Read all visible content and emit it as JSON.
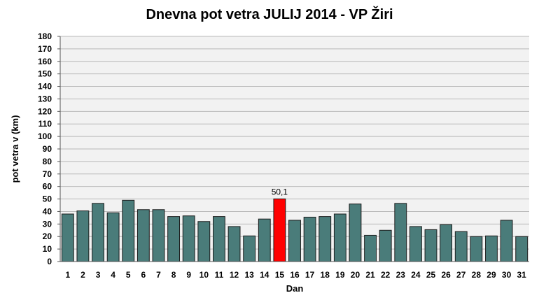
{
  "chart_data": {
    "type": "bar",
    "title": "Dnevna pot vetra JULIJ 2014 - VP Žiri",
    "xlabel": "Dan",
    "ylabel": "pot vetra  v (km)",
    "ylim": [
      0,
      180
    ],
    "ytick_step": 10,
    "grid": true,
    "categories": [
      "1",
      "2",
      "3",
      "4",
      "5",
      "6",
      "7",
      "8",
      "9",
      "10",
      "11",
      "12",
      "13",
      "14",
      "15",
      "16",
      "17",
      "18",
      "19",
      "20",
      "21",
      "22",
      "23",
      "24",
      "25",
      "26",
      "27",
      "28",
      "29",
      "30",
      "31"
    ],
    "values": [
      38,
      40.5,
      46.5,
      39,
      49,
      41.5,
      41.5,
      36,
      36.5,
      32,
      36,
      28,
      20.5,
      34,
      50.1,
      33,
      35.5,
      36,
      38,
      46,
      21,
      25,
      46.5,
      28,
      25.5,
      29.5,
      24,
      20,
      20.5,
      33,
      20
    ],
    "highlight_index": 14,
    "highlight_label": "50,1",
    "colors": {
      "bar": "#4a7c7a",
      "highlight": "#ff0000",
      "bar_stroke": "#1c1c1c",
      "plot_bg": "#f2f2f2",
      "grid": "#b8b8b8"
    }
  }
}
